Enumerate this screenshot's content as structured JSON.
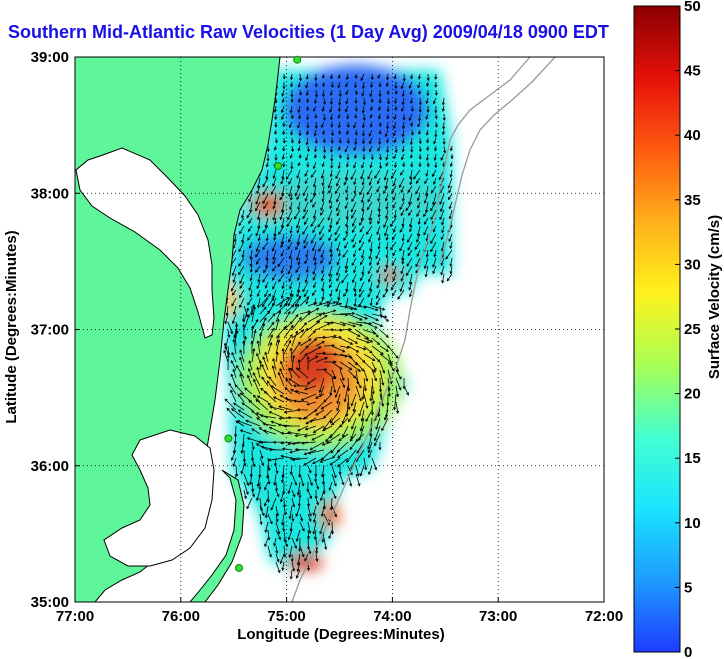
{
  "title": "Southern Mid-Atlantic Raw Velocities (1 Day Avg) 2009/04/18 0900 EDT",
  "map": {
    "xlabel": "Longitude (Degrees:Minutes)",
    "ylabel": "Latitude (Degrees:Minutes)",
    "x_ticks": [
      {
        "value": -77,
        "label": "77:00"
      },
      {
        "value": -76,
        "label": "76:00"
      },
      {
        "value": -75,
        "label": "75:00"
      },
      {
        "value": -74,
        "label": "74:00"
      },
      {
        "value": -73,
        "label": "73:00"
      },
      {
        "value": -72,
        "label": "72:00"
      }
    ],
    "y_ticks": [
      {
        "value": 39,
        "label": "39:00"
      },
      {
        "value": 38,
        "label": "38:00"
      },
      {
        "value": 37,
        "label": "37:00"
      },
      {
        "value": 36,
        "label": "36:00"
      },
      {
        "value": 35,
        "label": "35:00"
      }
    ],
    "xlim": [
      -77,
      -72
    ],
    "ylim": [
      35,
      39
    ],
    "grid": "dotted",
    "land_color": "#5ff59b",
    "shelf_contour_color": "#9a9a9a",
    "arrow_color": "#000000"
  },
  "colorbar": {
    "label": "Surface Velocity (cm/s)",
    "range": [
      0,
      50
    ],
    "ticks": [
      {
        "value": 0,
        "label": "0"
      },
      {
        "value": 5,
        "label": "5"
      },
      {
        "value": 10,
        "label": "10"
      },
      {
        "value": 15,
        "label": "15"
      },
      {
        "value": 20,
        "label": "20"
      },
      {
        "value": 25,
        "label": "25"
      },
      {
        "value": 30,
        "label": "30"
      },
      {
        "value": 35,
        "label": "35"
      },
      {
        "value": 40,
        "label": "40"
      },
      {
        "value": 45,
        "label": "45"
      },
      {
        "value": 50,
        "label": "50"
      }
    ],
    "colormap": [
      "#1f3cff",
      "#1e9bff",
      "#19e5ff",
      "#44ffd0",
      "#a8ff55",
      "#fff21c",
      "#ffb019",
      "#ff5a10",
      "#e6100a",
      "#8a0000"
    ]
  },
  "stations": [
    {
      "lon": -74.9,
      "lat": 38.98
    },
    {
      "lon": -75.08,
      "lat": 38.2
    },
    {
      "lon": -75.55,
      "lat": 36.2
    },
    {
      "lon": -75.45,
      "lat": 35.25
    }
  ]
}
